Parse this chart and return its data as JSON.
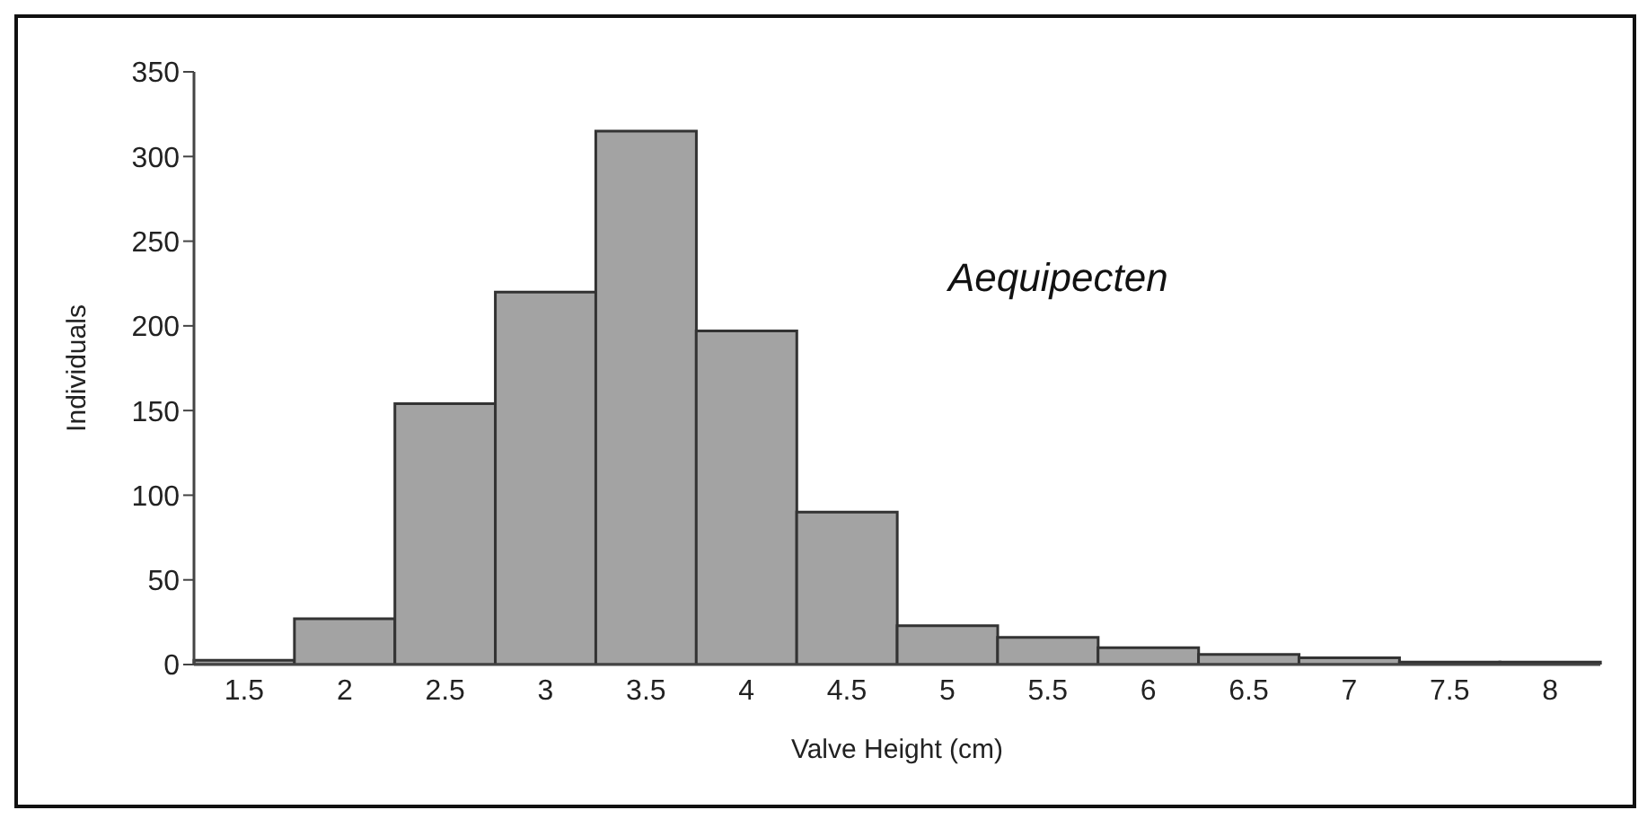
{
  "chart_data": {
    "type": "bar",
    "xlabel": "Valve Height (cm)",
    "ylabel": "Individuals",
    "annotations": [
      "Aequipecten"
    ],
    "categories": [
      "1.5",
      "2",
      "2.5",
      "3",
      "3.5",
      "4",
      "4.5",
      "5",
      "5.5",
      "6",
      "6.5",
      "7",
      "7.5",
      "8"
    ],
    "values": [
      2.5,
      27,
      154,
      220,
      315,
      197,
      90,
      23,
      16,
      10,
      6,
      4,
      1.5,
      1.5
    ],
    "color": "#a3a3a3",
    "ylim": [
      0,
      350
    ],
    "yticks": [
      0,
      50,
      100,
      150,
      200,
      250,
      300,
      350
    ],
    "grid": false,
    "legend": false
  }
}
